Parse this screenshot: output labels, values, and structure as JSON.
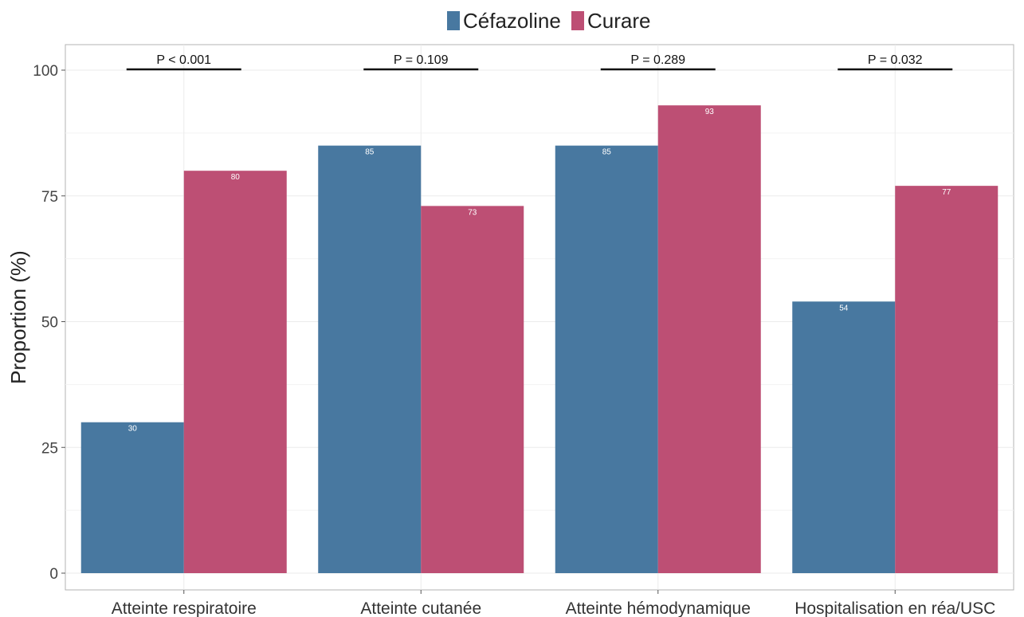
{
  "chart_data": {
    "type": "bar",
    "title": "",
    "xlabel": "",
    "ylabel": "Proportion (%)",
    "ylim": [
      0,
      105
    ],
    "yticks": [
      0,
      25,
      50,
      75,
      100
    ],
    "grid": true,
    "legend_position": "top",
    "categories": [
      "Atteinte respiratoire",
      "Atteinte cutanée",
      "Atteinte hémodynamique",
      "Hospitalisation en réa/USC"
    ],
    "series": [
      {
        "name": "Céfazoline",
        "color": "#4878a0",
        "values": [
          30,
          85,
          85,
          54
        ]
      },
      {
        "name": "Curare",
        "color": "#bd4f74",
        "values": [
          80,
          73,
          93,
          77
        ]
      }
    ],
    "annotations": [
      "P < 0.001",
      "P = 0.109",
      "P = 0.289",
      "P = 0.032"
    ]
  }
}
